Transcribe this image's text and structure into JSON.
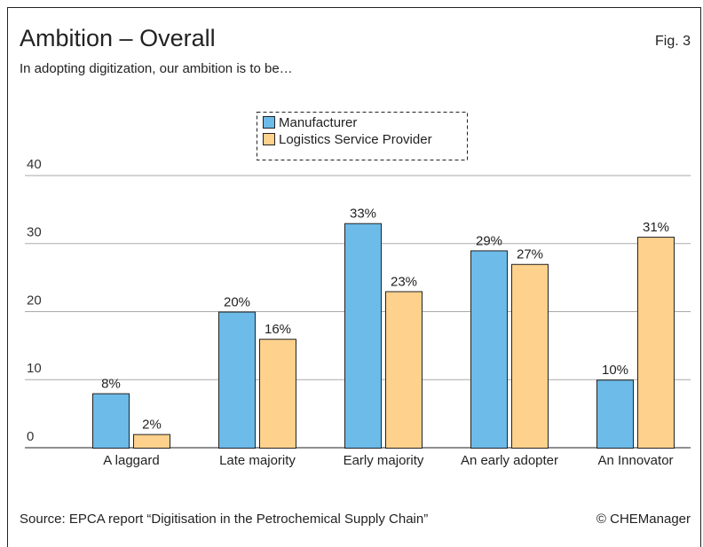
{
  "chart_data": {
    "type": "bar",
    "title": "Ambition – Overall",
    "figure_label": "Fig. 3",
    "subtitle": "In adopting digitization, our ambition is to be…",
    "source": "Source: EPCA report “Digitisation in the Petrochemical Supply Chain”",
    "credit": "© CHEManager",
    "categories": [
      "A laggard",
      "Late majority",
      "Early majority",
      "An early adopter",
      "An Innovator"
    ],
    "series": [
      {
        "name": "Manufacturer",
        "color": "#6cbbe9",
        "values": [
          8,
          20,
          33,
          29,
          10
        ],
        "value_labels": [
          "8%",
          "20%",
          "33%",
          "29%",
          "10%"
        ]
      },
      {
        "name": "Logistics Service Provider",
        "color": "#fed18c",
        "values": [
          2,
          16,
          23,
          27,
          31
        ],
        "value_labels": [
          "2%",
          "16%",
          "23%",
          "27%",
          "31%"
        ]
      }
    ],
    "ylim": [
      0,
      40
    ],
    "yticks": [
      0,
      10,
      20,
      30,
      40
    ],
    "grid": true,
    "legend": "top"
  }
}
